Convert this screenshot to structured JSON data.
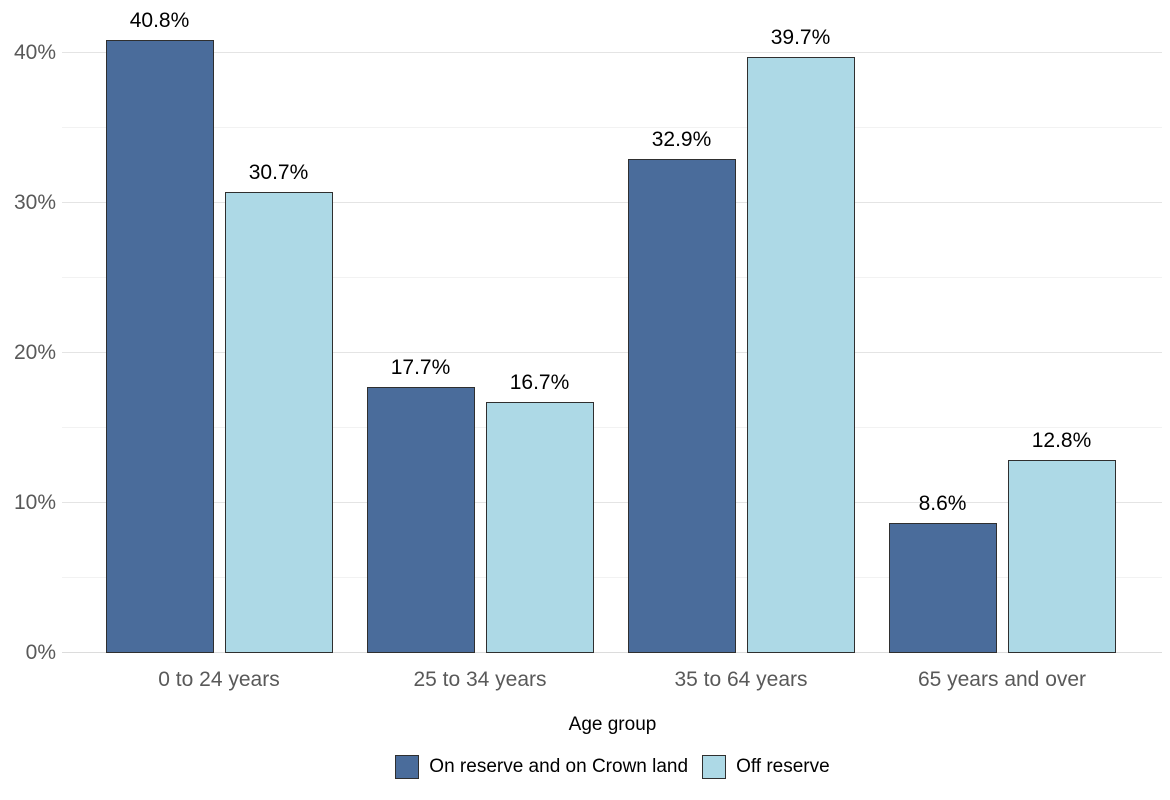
{
  "chart_data": {
    "type": "bar",
    "title": "",
    "xlabel": "Age group",
    "ylabel": "",
    "categories": [
      "0 to 24 years",
      "25 to 34 years",
      "35 to 64 years",
      "65 years and over"
    ],
    "series": [
      {
        "name": "On reserve and on Crown land",
        "color": "#4a6c9b",
        "values": [
          40.8,
          17.7,
          32.9,
          8.6
        ],
        "value_labels": [
          "40.8%",
          "17.7%",
          "32.9%",
          "8.6%"
        ]
      },
      {
        "name": "Off reserve",
        "color": "#add9e6",
        "values": [
          30.7,
          16.7,
          39.7,
          12.8
        ],
        "value_labels": [
          "30.7%",
          "16.7%",
          "39.7%",
          "12.8%"
        ]
      }
    ],
    "y_ticks": [
      0,
      10,
      20,
      30,
      40
    ],
    "y_tick_labels": [
      "0%",
      "10%",
      "20%",
      "30%",
      "40%"
    ],
    "y_minor_ticks": [
      5,
      15,
      25,
      35
    ],
    "ylim": [
      0,
      43.3
    ],
    "grid": "horizontal, major and minor, no vertical",
    "legend_position": "bottom-center",
    "colors": {
      "background": "#ffffff",
      "grid_major": "#e4e4e4",
      "grid_minor": "#f2f2f2",
      "baseline": "#dcdcdc",
      "axis_text": "#595959",
      "bar_border": "#2f2f2f",
      "value_text": "#000000"
    }
  }
}
